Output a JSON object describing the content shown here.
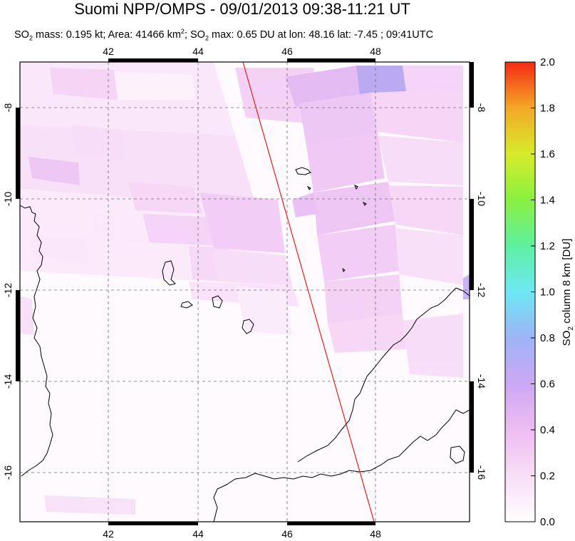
{
  "title": "Suomi NPP/OMPS - 09/01/2013 09:38-11:21 UT",
  "subtitle": {
    "p1": "SO",
    "p1_sub": "2",
    "p2": " mass: 0.195 kt; Area: 41466 km",
    "p2_sup": "2",
    "p3": "; SO",
    "p3_sub": "2",
    "p4": " max: 0.65 DU at lon: 48.16 lat: -7.45 ; 09:41UTC"
  },
  "map": {
    "lon_range": [
      40,
      50
    ],
    "lat_range": [
      -17,
      -7
    ],
    "lon_ticks": [
      "42",
      "44",
      "46",
      "48"
    ],
    "lat_ticks": [
      "-8",
      "-10",
      "-12",
      "-14",
      "-16"
    ],
    "orbit_track_color": "#e0201b",
    "grid_style": "dashed"
  },
  "colorbar": {
    "title_pre": "SO",
    "title_sub": "2",
    "title_post": " column 8 km [DU]",
    "min": 0.0,
    "max": 2.0,
    "tick_labels": [
      "0.0",
      "0.2",
      "0.4",
      "0.6",
      "0.8",
      "1.0",
      "1.2",
      "1.4",
      "1.6",
      "1.8",
      "2.0"
    ],
    "colors": [
      "#fffefe",
      "#f6cdf4",
      "#e6a6ee",
      "#b6a0f4",
      "#7ed6f4",
      "#5ef0e4",
      "#6ef07a",
      "#a6f03a",
      "#e6e826",
      "#f4a828",
      "#f43a1a"
    ]
  }
}
